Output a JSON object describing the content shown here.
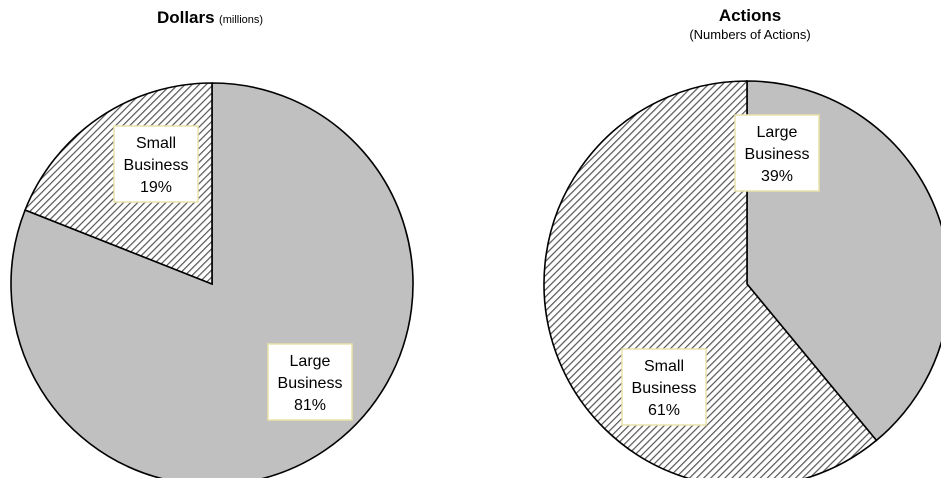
{
  "chart_data": [
    {
      "type": "pie",
      "title": "Dollars",
      "subtitle": "(millions)",
      "slices": [
        {
          "label": "Large Business",
          "pct_label": "81%",
          "value": 81,
          "fill": "solid",
          "color": "#c0c0c0"
        },
        {
          "label": "Small Business",
          "pct_label": "19%",
          "value": 19,
          "fill": "hatch",
          "color": "#808080"
        }
      ]
    },
    {
      "type": "pie",
      "title": "Actions",
      "subtitle": "(Numbers of Actions)",
      "slices": [
        {
          "label": "Large Business",
          "pct_label": "39%",
          "value": 39,
          "fill": "solid",
          "color": "#c0c0c0"
        },
        {
          "label": "Small Business",
          "pct_label": "61%",
          "value": 61,
          "fill": "hatch",
          "color": "#808080"
        }
      ]
    }
  ]
}
